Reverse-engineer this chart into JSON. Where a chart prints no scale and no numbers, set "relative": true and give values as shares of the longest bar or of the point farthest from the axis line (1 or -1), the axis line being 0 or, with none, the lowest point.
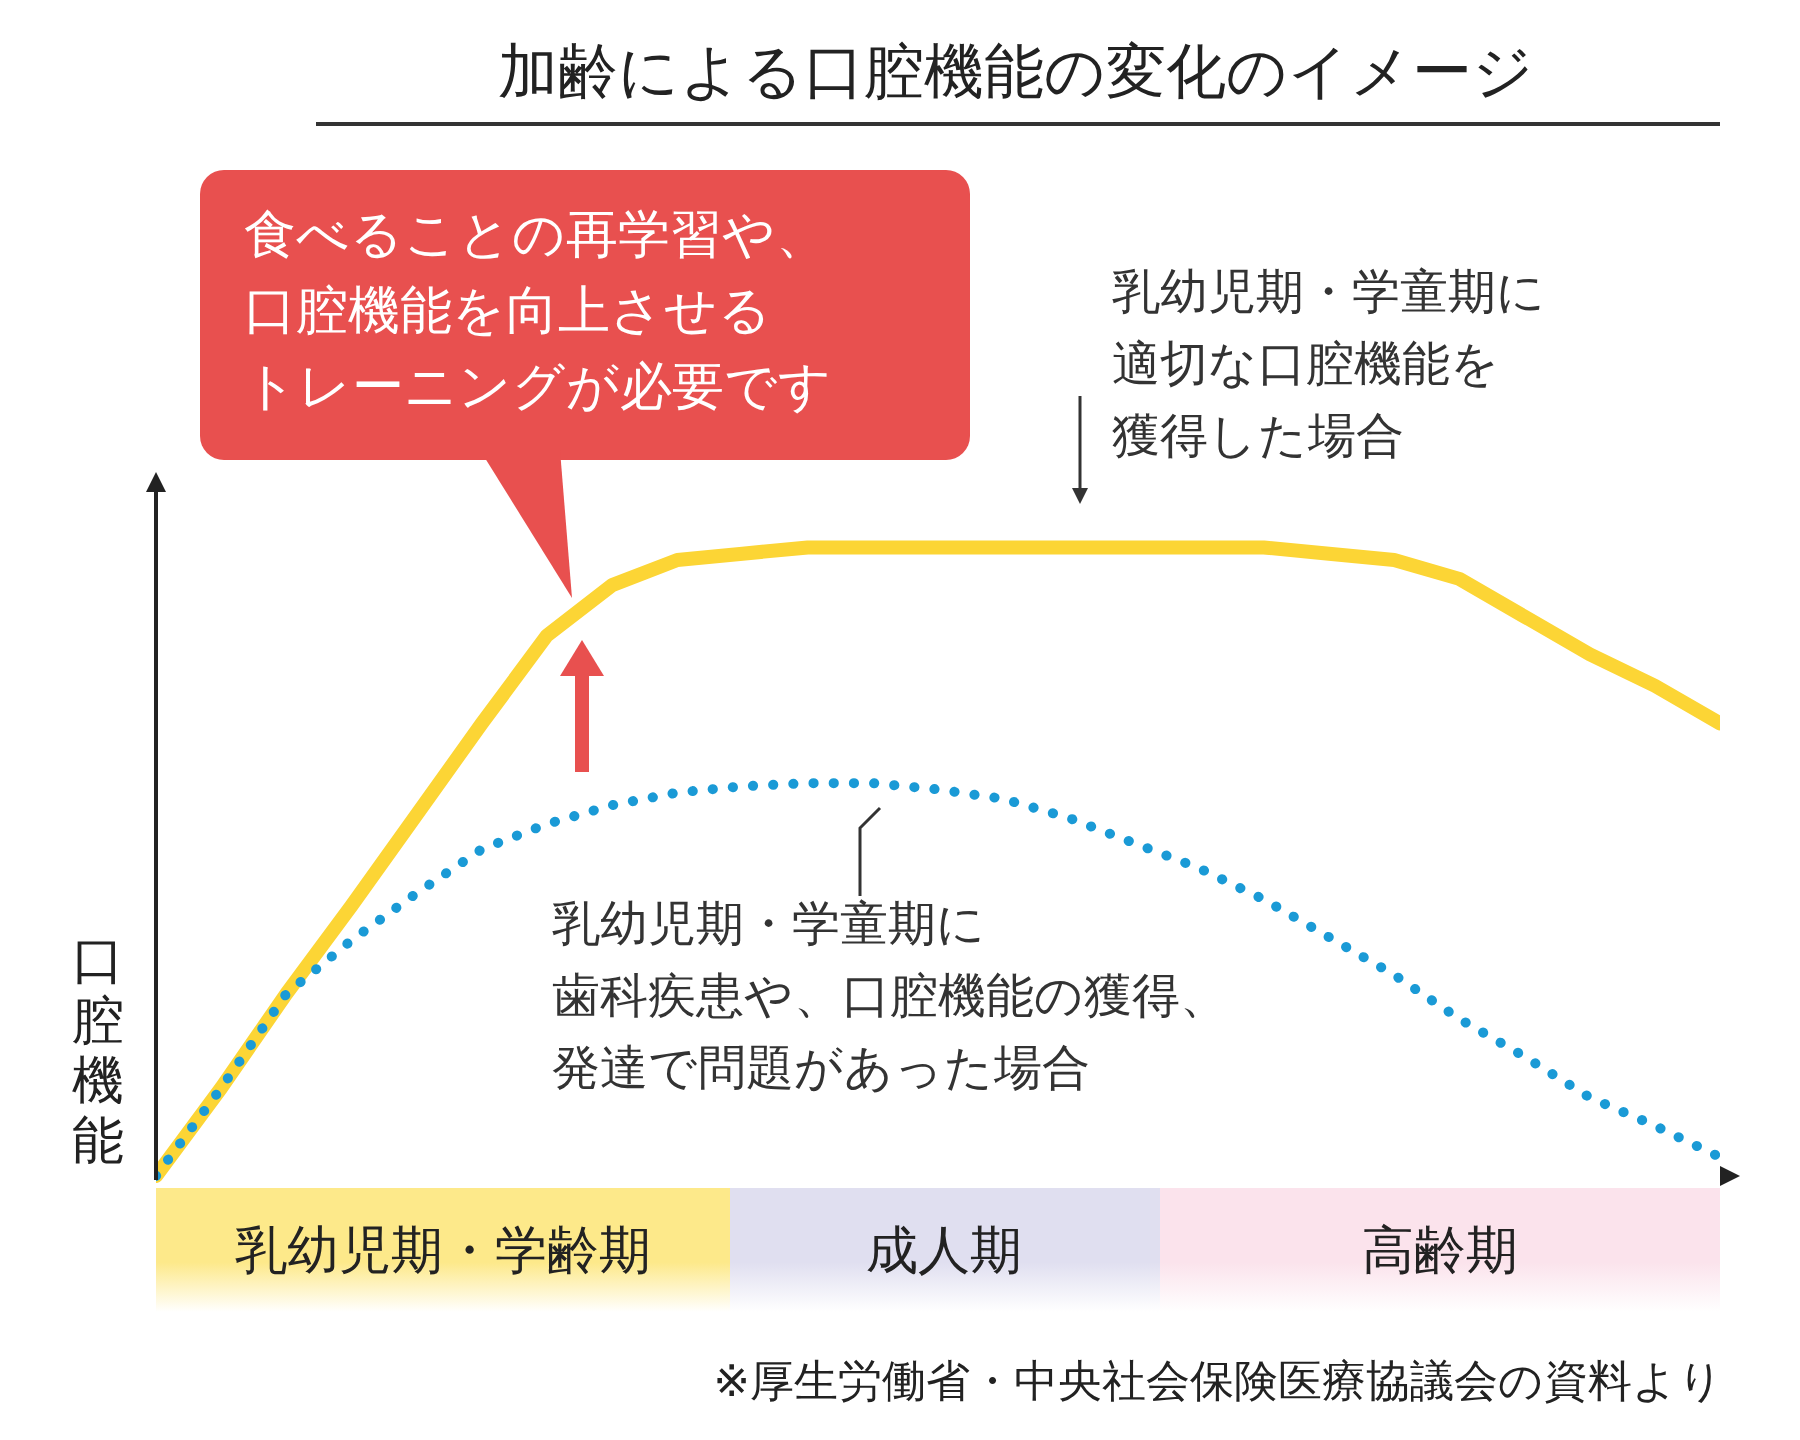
{
  "chart_data": {
    "type": "line",
    "relative": true,
    "title": "加齢による口腔機能の変化のイメージ",
    "ylabel": "口腔機能",
    "categories": [
      null,
      null,
      null,
      null,
      null,
      null,
      null,
      null,
      null,
      null,
      null,
      null,
      null,
      null,
      null,
      null,
      null,
      null,
      null,
      null,
      null,
      null,
      null,
      null,
      null
    ],
    "series": [
      {
        "color": "#fcd535",
        "line_style": "solid",
        "values": [
          0,
          0.14,
          0.29,
          0.43,
          0.575,
          0.72,
          0.86,
          0.94,
          0.98,
          0.99,
          1,
          1,
          1,
          1,
          1,
          1,
          1,
          1,
          0.99,
          0.98,
          0.95,
          0.89,
          0.83,
          0.78,
          0.72
        ]
      },
      {
        "color": "#1a9ad6",
        "line_style": "dotted",
        "values": [
          0,
          0.14,
          0.29,
          0.375,
          0.45,
          0.52,
          0.56,
          0.59,
          0.61,
          0.62,
          0.625,
          0.625,
          0.615,
          0.6,
          0.57,
          0.53,
          0.49,
          0.44,
          0.38,
          0.32,
          0.25,
          0.19,
          0.125,
          0.08,
          0.03
        ]
      }
    ],
    "annotations": [
      "食べることの再学習や、口腔機能を向上させるトレーニングが必要です",
      "乳幼児期・学童期に適切な口腔機能を獲得した場合",
      "乳幼児期・学童期に歯科疾患や、口腔機能の獲得、発達で問題があった場合",
      "※厚生労働省・中央社会保険医療協議会の資料より",
      "乳幼児期・学齢期",
      "成人期",
      "高齢期"
    ],
    "marker": "none",
    "grid": false,
    "legend": false
  }
}
